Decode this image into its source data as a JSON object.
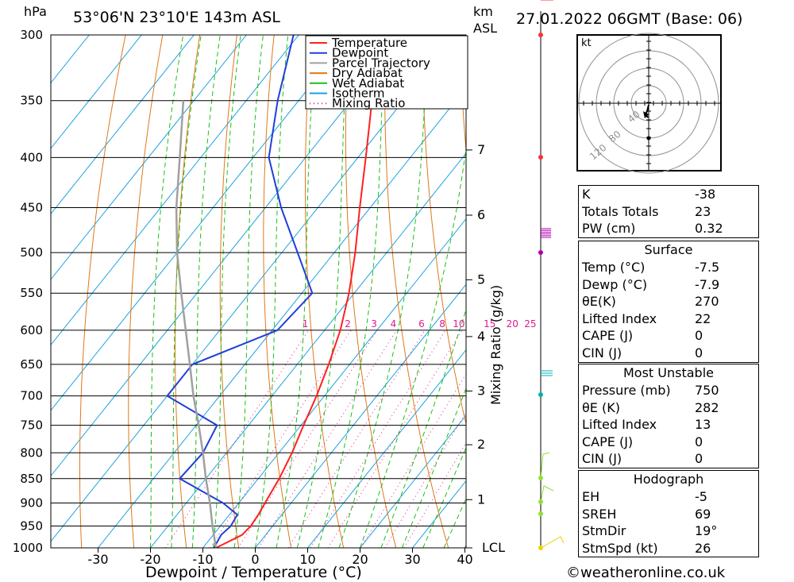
{
  "header": {
    "location": "53°06'N  23°10'E  143m  ASL",
    "datetime": "27.01.2022  06GMT  (Base: 06)",
    "left_unit": "hPa",
    "right_unit_top": "km",
    "right_unit_bottom": "ASL"
  },
  "legend": [
    {
      "label": "Temperature",
      "color": "#ff2020",
      "style": "solid"
    },
    {
      "label": "Dewpoint",
      "color": "#1f3fd8",
      "style": "solid"
    },
    {
      "label": "Parcel Trajectory",
      "color": "#a0a0a0",
      "style": "solid"
    },
    {
      "label": "Dry Adiabat",
      "color": "#e07818",
      "style": "solid"
    },
    {
      "label": "Wet Adiabat",
      "color": "#18c018",
      "style": "solid"
    },
    {
      "label": "Isotherm",
      "color": "#18a0e0",
      "style": "solid"
    },
    {
      "label": "Mixing Ratio",
      "color": "#e01890",
      "style": "dotted"
    }
  ],
  "chart_data": {
    "type": "line",
    "xlabel": "Dewpoint / Temperature (°C)",
    "ylabel": "hPa",
    "right_label": "Mixing Ratio (g/kg)",
    "xlim": [
      -40,
      40
    ],
    "ylim": [
      1000,
      300
    ],
    "x_ticks": [
      -30,
      -20,
      -10,
      0,
      10,
      20,
      30,
      40
    ],
    "pressure_ticks": [
      300,
      350,
      400,
      450,
      500,
      550,
      600,
      650,
      700,
      750,
      800,
      850,
      900,
      950,
      1000
    ],
    "km_ticks": [
      {
        "label": "7",
        "p": 393
      },
      {
        "label": "6",
        "p": 458
      },
      {
        "label": "5",
        "p": 533
      },
      {
        "label": "4",
        "p": 609
      },
      {
        "label": "3",
        "p": 692
      },
      {
        "label": "2",
        "p": 785
      },
      {
        "label": "1",
        "p": 893
      },
      {
        "label": "LCL",
        "p": 1000
      }
    ],
    "mixing_ratio_labels": [
      "1",
      "2",
      "3",
      "4",
      "6",
      "8",
      "10",
      "15",
      "20",
      "25"
    ],
    "series": [
      {
        "name": "Temperature",
        "p": [
          1000,
          990,
          970,
          950,
          925,
          900,
          850,
          800,
          750,
          700,
          650,
          600,
          550,
          500,
          450,
          400,
          350,
          300
        ],
        "t": [
          -7.5,
          -6.5,
          -4.5,
          -4.2,
          -4.5,
          -5.0,
          -6.0,
          -7.5,
          -9.5,
          -11.5,
          -14.0,
          -17.0,
          -21.0,
          -26.0,
          -32.0,
          -38.5,
          -46.0,
          -53.5
        ]
      },
      {
        "name": "Dewpoint",
        "p": [
          1000,
          970,
          950,
          925,
          900,
          850,
          800,
          750,
          700,
          650,
          600,
          550,
          500,
          450,
          400,
          350,
          300
        ],
        "t": [
          -7.9,
          -8.5,
          -8.0,
          -8.5,
          -13.0,
          -25.0,
          -24.5,
          -26.0,
          -40.0,
          -40.0,
          -29.0,
          -28.0,
          -37.0,
          -47.0,
          -57.0,
          -64.0,
          -71.0
        ]
      },
      {
        "name": "Parcel Trajectory",
        "p": [
          1000,
          950,
          900,
          850,
          800,
          750,
          700,
          650,
          600,
          550,
          500,
          450,
          400,
          350
        ],
        "t": [
          -7.5,
          -11.5,
          -15.5,
          -20.0,
          -24.5,
          -29.5,
          -35.0,
          -40.5,
          -46.5,
          -53.0,
          -60.0,
          -67.0,
          -74.0,
          -82.0
        ]
      }
    ]
  },
  "hodograph": {
    "unit_label": "kt",
    "ring_labels": [
      "40",
      "80",
      "120"
    ]
  },
  "indices": {
    "rows": [
      {
        "label": "K",
        "value": "-38"
      },
      {
        "label": "Totals Totals",
        "value": "23"
      },
      {
        "label": "PW (cm)",
        "value": "0.32"
      }
    ]
  },
  "surface": {
    "title": "Surface",
    "rows": [
      {
        "label": "Temp (°C)",
        "value": "-7.5"
      },
      {
        "label": "Dewp (°C)",
        "value": "-7.9"
      },
      {
        "label": "θE(K)",
        "value": "270"
      },
      {
        "label": "Lifted Index",
        "value": "22"
      },
      {
        "label": "CAPE (J)",
        "value": "0"
      },
      {
        "label": "CIN (J)",
        "value": "0"
      }
    ]
  },
  "most_unstable": {
    "title": "Most Unstable",
    "rows": [
      {
        "label": "Pressure (mb)",
        "value": "750"
      },
      {
        "label": "θE (K)",
        "value": "282"
      },
      {
        "label": "Lifted Index",
        "value": "13"
      },
      {
        "label": "CAPE (J)",
        "value": "0"
      },
      {
        "label": "CIN (J)",
        "value": "0"
      }
    ]
  },
  "hodograph_box": {
    "title": "Hodograph",
    "rows": [
      {
        "label": "EH",
        "value": "-5"
      },
      {
        "label": "SREH",
        "value": "69"
      },
      {
        "label": "StmDir",
        "value": "19°"
      },
      {
        "label": "StmSpd (kt)",
        "value": "26"
      }
    ]
  },
  "footer": "©weatheronline.co.uk"
}
